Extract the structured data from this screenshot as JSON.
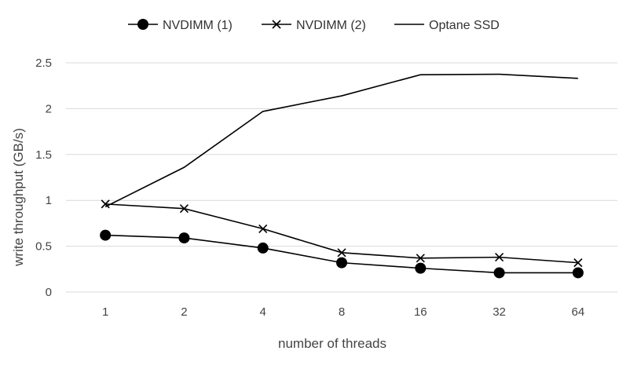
{
  "chart_data": {
    "type": "line",
    "title": "",
    "xlabel": "number of threads",
    "ylabel": "write throughput (GB/s)",
    "categories": [
      "1",
      "2",
      "4",
      "8",
      "16",
      "32",
      "64"
    ],
    "ylim": [
      0,
      2.5
    ],
    "yticks": [
      "0",
      "0.5",
      "1",
      "1.5",
      "2",
      "2.5"
    ],
    "grid": true,
    "legend_position": "top",
    "series": [
      {
        "name": "NVDIMM (1)",
        "marker": "circle",
        "values": [
          0.62,
          0.59,
          0.48,
          0.32,
          0.26,
          0.21,
          0.21
        ]
      },
      {
        "name": "NVDIMM (2)",
        "marker": "x",
        "values": [
          0.96,
          0.91,
          0.69,
          0.43,
          0.37,
          0.38,
          0.32
        ]
      },
      {
        "name": "Optane SSD",
        "marker": "none",
        "values": [
          0.93,
          1.36,
          1.97,
          2.14,
          2.37,
          2.375,
          2.33
        ]
      }
    ]
  }
}
